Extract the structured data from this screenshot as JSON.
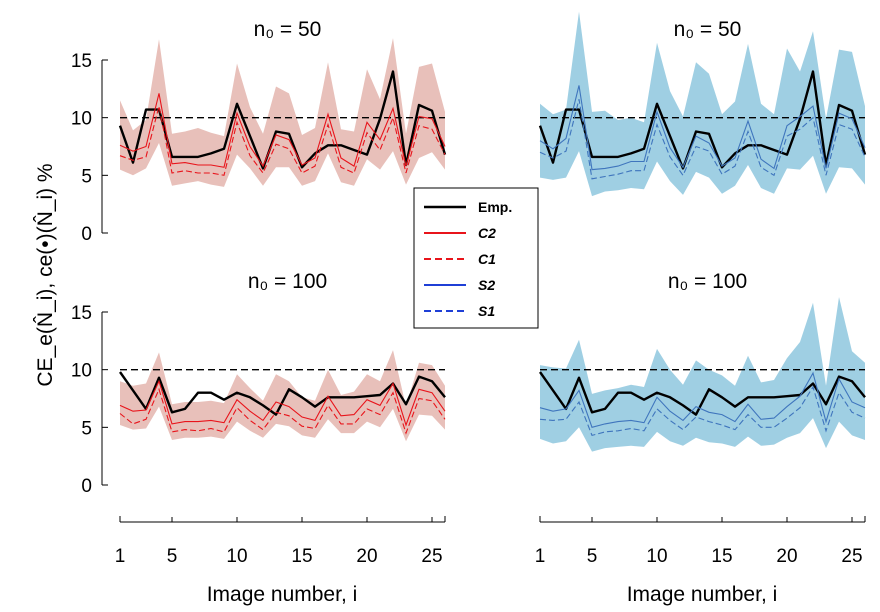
{
  "chart_data": {
    "type": "line",
    "ylabel": "CE_e(N̂_i), ce(•)(N̂_i) %",
    "xlabel": "Image number, i",
    "x_ticks": [
      1,
      5,
      10,
      15,
      20,
      25
    ],
    "y_ticks": [
      0,
      5,
      10,
      15
    ],
    "xlim": [
      1,
      26
    ],
    "ylim": [
      0,
      15
    ],
    "reference_line": 10,
    "legend": {
      "placement": "center",
      "entries": [
        {
          "label": "Emp.",
          "color": "#000000",
          "dash": "solid"
        },
        {
          "label": "C2",
          "color": "#e8141b",
          "dash": "solid"
        },
        {
          "label": "C1",
          "color": "#e8141b",
          "dash": "dashed"
        },
        {
          "label": "S2",
          "color": "#1f3fd6",
          "dash": "solid"
        },
        {
          "label": "S1",
          "color": "#1f3fd6",
          "dash": "dashed"
        }
      ]
    },
    "colors": {
      "emp": "#000000",
      "C_line": "#e8141b",
      "C_band": "#e8c0ba",
      "S_line": "#3f75bd",
      "S_band": "#9fcfe3",
      "reference": "#000000"
    },
    "panels": [
      {
        "title": "n₀ = 50",
        "method": "C",
        "x": [
          1,
          2,
          3,
          4,
          5,
          6,
          7,
          8,
          9,
          10,
          11,
          12,
          13,
          14,
          15,
          16,
          17,
          18,
          19,
          20,
          21,
          22,
          23,
          24,
          25,
          26
        ],
        "series": [
          {
            "name": "Emp.",
            "values": [
              9.3,
              6.1,
              10.7,
              10.7,
              6.6,
              6.6,
              6.6,
              6.9,
              7.3,
              11.2,
              8.4,
              5.6,
              8.8,
              8.6,
              5.7,
              6.9,
              7.6,
              7.6,
              7.2,
              6.8,
              9.9,
              14.0,
              5.9,
              11.1,
              10.6,
              6.8
            ]
          },
          {
            "name": "C2",
            "values": [
              7.6,
              7.1,
              7.5,
              12.1,
              6.0,
              6.1,
              5.9,
              5.9,
              5.7,
              10.4,
              7.5,
              5.8,
              8.5,
              8.1,
              5.9,
              6.5,
              10.3,
              6.5,
              5.8,
              9.6,
              8.1,
              10.8,
              5.8,
              10.1,
              9.9,
              7.5
            ]
          },
          {
            "name": "C1",
            "values": [
              6.7,
              6.3,
              6.6,
              11.0,
              5.2,
              5.4,
              5.2,
              5.2,
              5.0,
              9.6,
              6.7,
              5.2,
              7.7,
              7.3,
              5.2,
              5.8,
              9.4,
              5.7,
              5.2,
              8.7,
              7.2,
              10.0,
              5.2,
              9.3,
              9.0,
              6.8
            ]
          }
        ],
        "band": {
          "upper": [
            11.5,
            8.9,
            9.8,
            16.8,
            8.6,
            8.8,
            9.1,
            8.7,
            8.4,
            14.7,
            10.9,
            8.6,
            12.7,
            12.1,
            8.5,
            9.1,
            14.8,
            9.0,
            8.8,
            14.2,
            11.6,
            16.9,
            8.6,
            14.4,
            14.7,
            10.5
          ],
          "lower": [
            5.5,
            5.0,
            5.6,
            7.8,
            4.1,
            4.3,
            4.5,
            4.2,
            4.0,
            6.8,
            5.6,
            4.1,
            5.7,
            5.7,
            4.1,
            4.5,
            6.9,
            4.4,
            4.1,
            6.4,
            5.5,
            7.1,
            4.2,
            6.5,
            7.0,
            5.5
          ]
        }
      },
      {
        "title": "n₀ = 50",
        "method": "S",
        "x": [
          1,
          2,
          3,
          4,
          5,
          6,
          7,
          8,
          9,
          10,
          11,
          12,
          13,
          14,
          15,
          16,
          17,
          18,
          19,
          20,
          21,
          22,
          23,
          24,
          25,
          26
        ],
        "series": [
          {
            "name": "Emp.",
            "values": [
              9.3,
              6.1,
              10.7,
              10.7,
              6.6,
              6.6,
              6.6,
              6.9,
              7.3,
              11.2,
              8.4,
              5.6,
              8.8,
              8.6,
              5.7,
              6.9,
              7.6,
              7.6,
              7.2,
              6.8,
              9.9,
              14.0,
              5.9,
              11.1,
              10.6,
              6.8
            ]
          },
          {
            "name": "S2",
            "values": [
              8.0,
              7.3,
              8.2,
              12.8,
              5.5,
              5.6,
              5.8,
              6.2,
              6.2,
              10.5,
              7.4,
              5.7,
              8.4,
              7.8,
              5.8,
              6.5,
              9.7,
              6.4,
              5.6,
              9.3,
              10.1,
              11.0,
              5.6,
              10.4,
              9.9,
              7.4
            ]
          },
          {
            "name": "S1",
            "values": [
              7.0,
              6.5,
              7.1,
              11.6,
              4.7,
              4.9,
              5.1,
              5.4,
              5.4,
              9.4,
              6.6,
              5.0,
              7.5,
              7.1,
              5.1,
              5.8,
              8.8,
              5.7,
              5.0,
              8.4,
              9.0,
              10.0,
              5.0,
              9.4,
              9.0,
              6.6
            ]
          }
        ],
        "band": {
          "upper": [
            11.2,
            10.3,
            10.7,
            19.2,
            10.5,
            10.6,
            9.8,
            10.0,
            9.6,
            16.5,
            12.3,
            10.1,
            14.8,
            13.8,
            10.3,
            11.4,
            16.4,
            11.2,
            10.3,
            16.0,
            14.0,
            17.5,
            9.9,
            15.9,
            15.7,
            11.0
          ],
          "lower": [
            4.8,
            4.6,
            4.8,
            7.1,
            3.2,
            3.6,
            3.7,
            3.9,
            3.8,
            6.2,
            4.5,
            3.3,
            5.3,
            4.8,
            3.4,
            4.1,
            5.9,
            3.9,
            3.4,
            5.6,
            5.5,
            6.7,
            3.4,
            5.7,
            5.6,
            4.2
          ]
        }
      },
      {
        "title": "n₀ = 100",
        "method": "C",
        "x": [
          1,
          2,
          3,
          4,
          5,
          6,
          7,
          8,
          9,
          10,
          11,
          12,
          13,
          14,
          15,
          16,
          17,
          18,
          19,
          20,
          21,
          22,
          23,
          24,
          25,
          26
        ],
        "series": [
          {
            "name": "Emp.",
            "values": [
              9.8,
              8.2,
              6.6,
              9.3,
              6.3,
              6.6,
              8.0,
              8.0,
              7.4,
              8.0,
              7.6,
              6.9,
              6.1,
              8.3,
              7.6,
              6.8,
              7.6,
              7.6,
              7.6,
              7.7,
              7.8,
              8.8,
              7.0,
              9.4,
              9.0,
              7.6
            ]
          },
          {
            "name": "C2",
            "values": [
              6.9,
              6.4,
              6.5,
              9.0,
              5.3,
              5.5,
              5.5,
              5.6,
              5.4,
              7.4,
              6.4,
              5.6,
              7.2,
              6.8,
              5.9,
              5.6,
              7.7,
              6.0,
              6.1,
              7.4,
              6.9,
              8.8,
              5.2,
              8.3,
              8.0,
              6.4
            ]
          },
          {
            "name": "C1",
            "values": [
              6.2,
              5.3,
              5.7,
              8.3,
              4.6,
              4.8,
              4.7,
              4.9,
              4.6,
              6.7,
              5.6,
              4.8,
              6.3,
              6.0,
              5.1,
              4.9,
              6.9,
              5.3,
              5.3,
              6.6,
              6.1,
              8.0,
              4.5,
              7.5,
              7.3,
              5.7
            ]
          }
        ],
        "band": {
          "upper": [
            9.0,
            8.6,
            8.8,
            11.5,
            7.0,
            7.2,
            7.2,
            7.3,
            7.1,
            9.6,
            8.4,
            7.3,
            9.6,
            9.0,
            7.6,
            7.3,
            10.0,
            7.8,
            8.1,
            9.6,
            9.0,
            11.7,
            6.8,
            10.6,
            10.4,
            8.6
          ],
          "lower": [
            5.2,
            4.8,
            4.9,
            6.8,
            3.9,
            4.1,
            4.1,
            4.2,
            4.0,
            5.5,
            4.7,
            4.1,
            5.3,
            5.1,
            4.3,
            4.1,
            5.7,
            4.5,
            4.5,
            5.5,
            5.0,
            6.6,
            3.8,
            6.1,
            6.0,
            4.8
          ]
        }
      },
      {
        "title": "n₀ = 100",
        "method": "S",
        "x": [
          1,
          2,
          3,
          4,
          5,
          6,
          7,
          8,
          9,
          10,
          11,
          12,
          13,
          14,
          15,
          16,
          17,
          18,
          19,
          20,
          21,
          22,
          23,
          24,
          25,
          26
        ],
        "series": [
          {
            "name": "Emp.",
            "values": [
              9.8,
              8.2,
              6.6,
              9.3,
              6.3,
              6.6,
              8.0,
              8.0,
              7.4,
              8.0,
              7.6,
              6.9,
              6.1,
              8.3,
              7.6,
              6.8,
              7.6,
              7.6,
              7.6,
              7.7,
              7.8,
              8.8,
              7.0,
              9.4,
              9.0,
              7.6
            ]
          },
          {
            "name": "S2",
            "values": [
              6.7,
              6.4,
              6.6,
              8.2,
              5.0,
              5.3,
              5.5,
              5.6,
              5.4,
              7.6,
              6.4,
              5.6,
              6.8,
              6.3,
              6.1,
              5.5,
              7.0,
              5.7,
              5.8,
              6.8,
              7.7,
              9.7,
              5.5,
              9.2,
              7.2,
              6.7
            ]
          },
          {
            "name": "S1",
            "values": [
              5.7,
              5.6,
              5.7,
              7.2,
              4.3,
              4.6,
              4.7,
              4.9,
              4.7,
              6.6,
              5.6,
              4.8,
              5.9,
              5.5,
              5.2,
              4.8,
              6.1,
              5.0,
              5.0,
              5.8,
              6.7,
              8.5,
              4.7,
              8.0,
              6.3,
              5.8
            ]
          }
        ],
        "band": {
          "upper": [
            10.4,
            10.2,
            10.1,
            12.6,
            7.9,
            8.2,
            8.4,
            8.7,
            8.5,
            11.8,
            10.0,
            8.7,
            10.8,
            10.0,
            9.5,
            8.6,
            11.2,
            8.9,
            9.1,
            11.0,
            12.4,
            15.8,
            8.6,
            16.3,
            11.6,
            10.6
          ],
          "lower": [
            4.0,
            3.6,
            3.8,
            5.0,
            2.9,
            3.2,
            3.3,
            3.4,
            3.3,
            4.6,
            3.8,
            3.4,
            4.1,
            3.7,
            3.6,
            3.3,
            4.2,
            3.4,
            3.5,
            4.1,
            4.5,
            5.8,
            3.2,
            5.5,
            4.3,
            3.9
          ]
        }
      }
    ]
  },
  "legend_labels": [
    "Emp.",
    "C2",
    "C1",
    "S2",
    "S1"
  ]
}
